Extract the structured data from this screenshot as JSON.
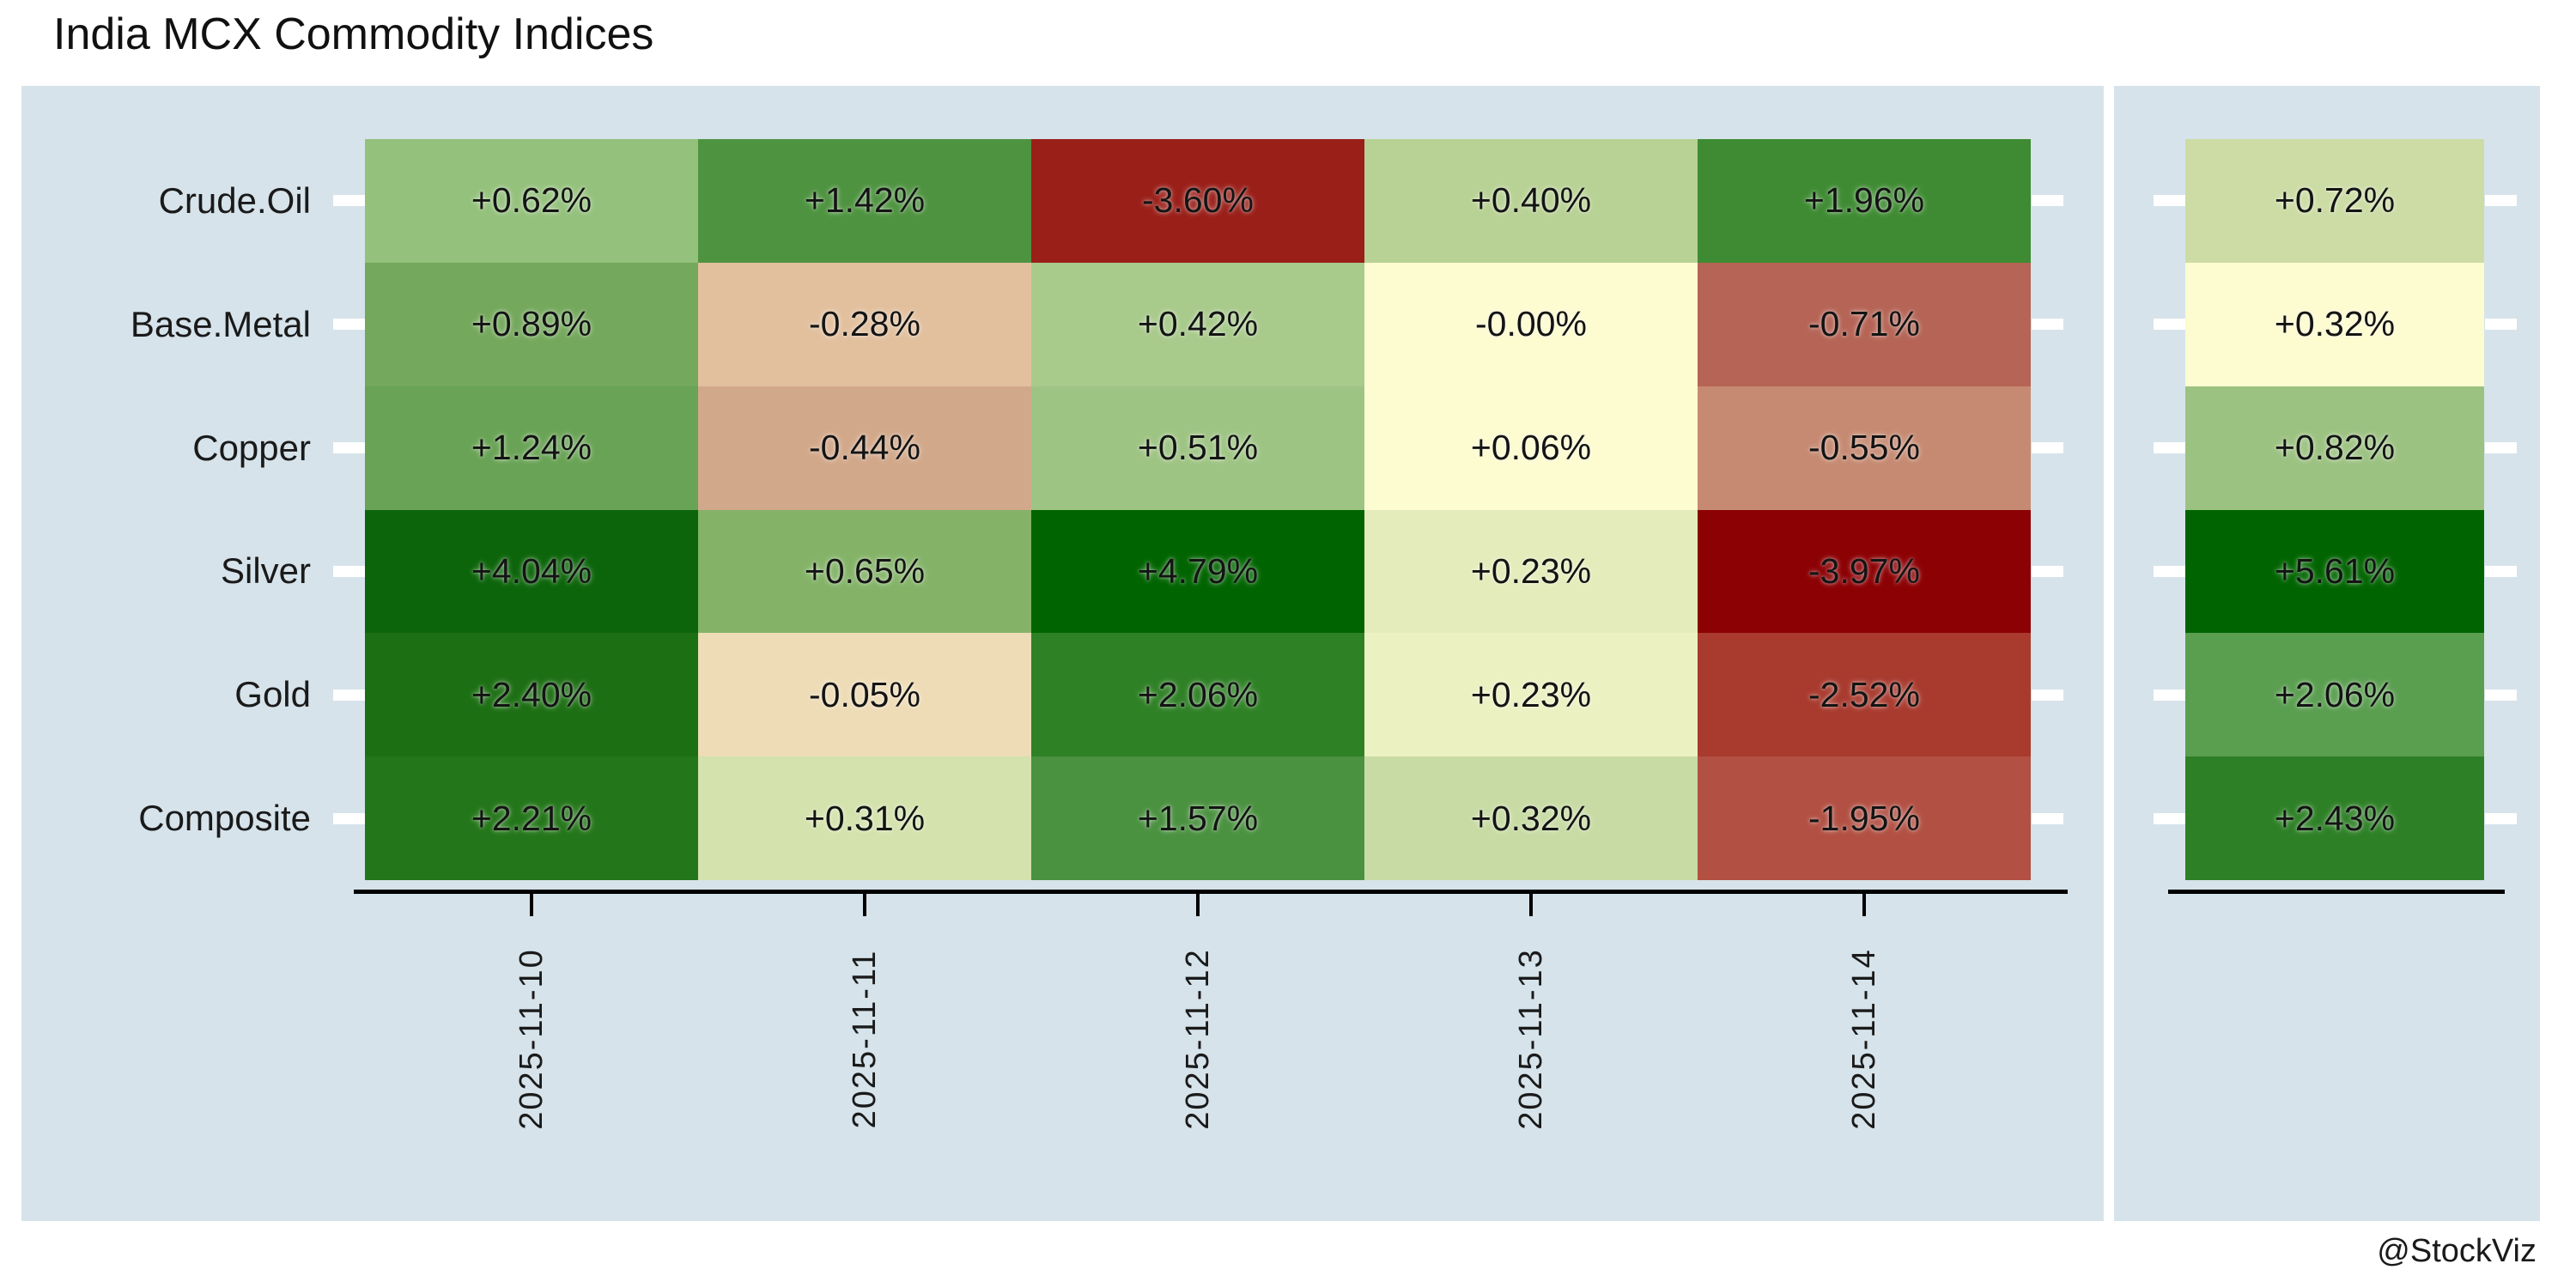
{
  "title": "India MCX Commodity Indices",
  "credit": "@StockViz",
  "chart_data": {
    "type": "heatmap",
    "title": "India MCX Commodity Indices",
    "rows": [
      "Crude.Oil",
      "Base.Metal",
      "Copper",
      "Silver",
      "Gold",
      "Composite"
    ],
    "columns": [
      "2025-11-10",
      "2025-11-11",
      "2025-11-12",
      "2025-11-13",
      "2025-11-14"
    ],
    "daily": {
      "labels": [
        [
          "+0.62%",
          "+1.42%",
          "-3.60%",
          "+0.40%",
          "+1.96%"
        ],
        [
          "+0.89%",
          "-0.28%",
          "+0.42%",
          "-0.00%",
          "-0.71%"
        ],
        [
          "+1.24%",
          "-0.44%",
          "+0.51%",
          "+0.06%",
          "-0.55%"
        ],
        [
          "+4.04%",
          "+0.65%",
          "+4.79%",
          "+0.23%",
          "-3.97%"
        ],
        [
          "+2.40%",
          "-0.05%",
          "+2.06%",
          "+0.23%",
          "-2.52%"
        ],
        [
          "+2.21%",
          "+0.31%",
          "+1.57%",
          "+0.32%",
          "-1.95%"
        ]
      ],
      "values": [
        [
          0.62,
          1.42,
          -3.6,
          0.4,
          1.96
        ],
        [
          0.89,
          -0.28,
          0.42,
          -0.0,
          -0.71
        ],
        [
          1.24,
          -0.44,
          0.51,
          0.06,
          -0.55
        ],
        [
          4.04,
          0.65,
          4.79,
          0.23,
          -3.97
        ],
        [
          2.4,
          -0.05,
          2.06,
          0.23,
          -2.52
        ],
        [
          2.21,
          0.31,
          1.57,
          0.32,
          -1.95
        ]
      ],
      "colors": [
        [
          "#94c17c",
          "#4e9340",
          "#9a1f19",
          "#b8d194",
          "#3f8b33"
        ],
        [
          "#74a85c",
          "#e2c09e",
          "#a8ca8b",
          "#fdfbd0",
          "#b56455"
        ],
        [
          "#69a355",
          "#d2a88a",
          "#9ec484",
          "#fdfbd0",
          "#c68a72"
        ],
        [
          "#0d650b",
          "#84b368",
          "#006400",
          "#e3ecba",
          "#8c0104"
        ],
        [
          "#1d6f14",
          "#eedcb6",
          "#2f8126",
          "#ecf1c2",
          "#a83a2e"
        ],
        [
          "#24761a",
          "#d4e2ad",
          "#4a9140",
          "#c8dba4",
          "#b25043"
        ]
      ]
    },
    "weekly": {
      "labels": [
        "+0.72%",
        "+0.32%",
        "+0.82%",
        "+5.61%",
        "+2.06%",
        "+2.43%"
      ],
      "values": [
        0.72,
        0.32,
        0.82,
        5.61,
        2.06,
        2.43
      ],
      "colors": [
        "#ccdca4",
        "#fdfbd0",
        "#9cc282",
        "#006400",
        "#5a9e50",
        "#2e8027"
      ]
    },
    "legend_position": "none",
    "grid": false,
    "panel_background": "#d6e3ea",
    "text_color": "#1a1a1a",
    "axis_color": "#000000"
  }
}
